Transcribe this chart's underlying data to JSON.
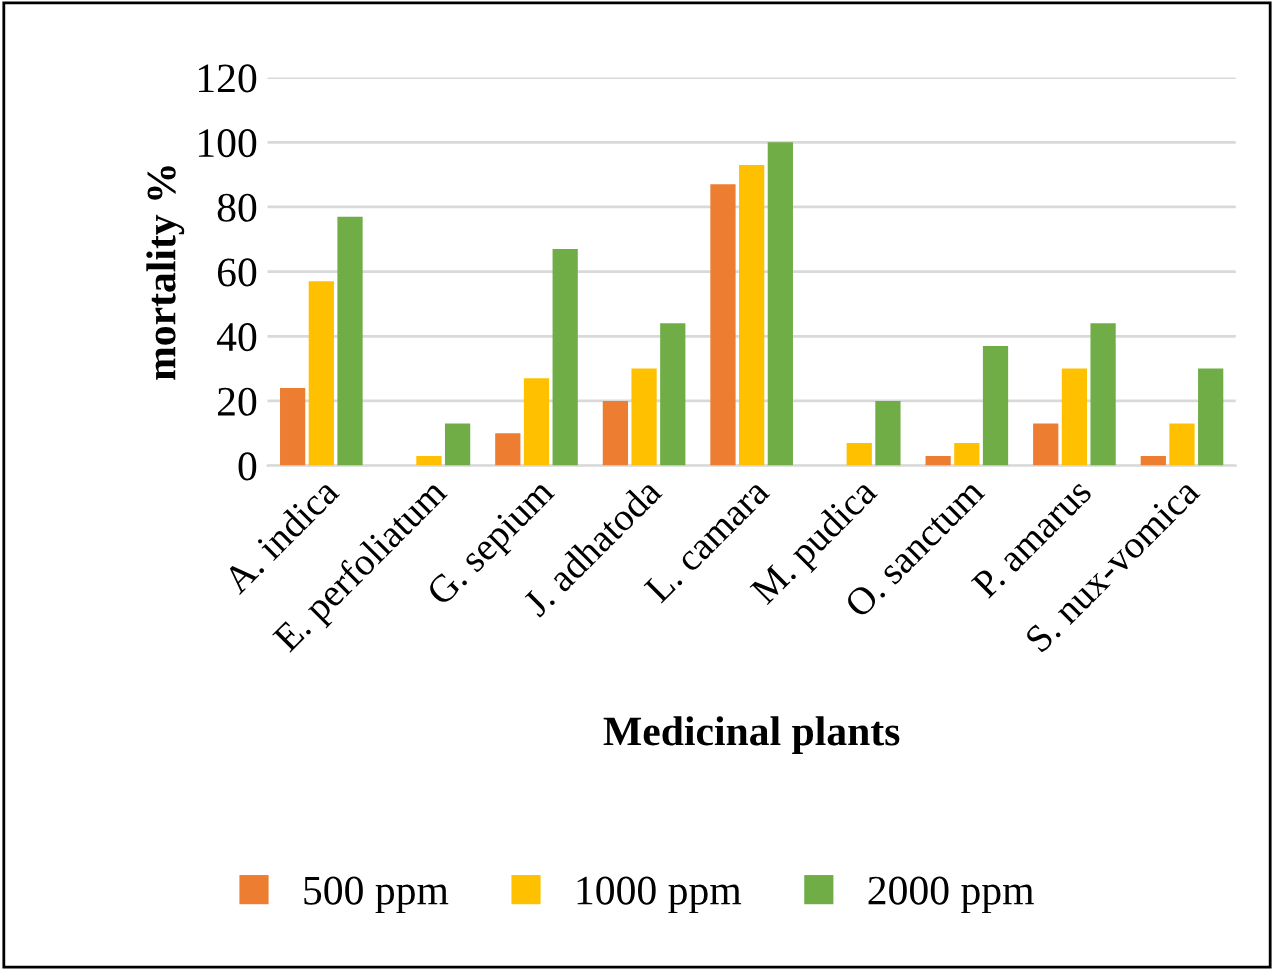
{
  "chart_data": {
    "type": "bar",
    "xlabel": "Medicinal plants",
    "ylabel": "mortality %",
    "categories": [
      "A. indica",
      "E. perfoliatum",
      "G. sepium",
      "J. adhatoda",
      "L. camara",
      "M. pudica",
      "O. sanctum",
      "P. amarus",
      "S. nux-vomica"
    ],
    "series": [
      {
        "name": "500 ppm",
        "color": "#ed7d31",
        "values": [
          24,
          0,
          10,
          20,
          87,
          0,
          3,
          13,
          3
        ]
      },
      {
        "name": "1000 ppm",
        "color": "#ffc000",
        "values": [
          57,
          3,
          27,
          30,
          93,
          7,
          7,
          30,
          13
        ]
      },
      {
        "name": "2000 ppm",
        "color": "#70ad47",
        "values": [
          77,
          13,
          67,
          44,
          100,
          20,
          37,
          44,
          30
        ]
      }
    ],
    "ylim": [
      0,
      120
    ],
    "yticks": [
      0,
      20,
      40,
      60,
      80,
      100,
      120
    ],
    "grid": "y",
    "legend": "bottom"
  }
}
